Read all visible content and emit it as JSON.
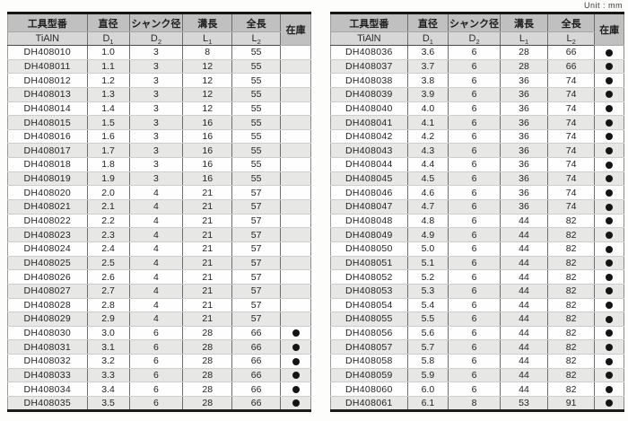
{
  "unit_label": "Unit : mm",
  "headers": {
    "model": "工具型番",
    "diameter": "直径",
    "shank": "シャンク径",
    "flute": "溝長",
    "overall": "全長",
    "stock": "在庫",
    "coating": "TiAlN",
    "d1": {
      "base": "D",
      "sub": "1"
    },
    "d2": {
      "base": "D",
      "sub": "2"
    },
    "l1": {
      "base": "L",
      "sub": "1"
    },
    "l2": {
      "base": "L",
      "sub": "2"
    }
  },
  "left_rows": [
    [
      "DH408010",
      "1.0",
      "3",
      "8",
      "55",
      0
    ],
    [
      "DH408011",
      "1.1",
      "3",
      "12",
      "55",
      0
    ],
    [
      "DH408012",
      "1.2",
      "3",
      "12",
      "55",
      0
    ],
    [
      "DH408013",
      "1.3",
      "3",
      "12",
      "55",
      0
    ],
    [
      "DH408014",
      "1.4",
      "3",
      "12",
      "55",
      0
    ],
    [
      "DH408015",
      "1.5",
      "3",
      "16",
      "55",
      0
    ],
    [
      "DH408016",
      "1.6",
      "3",
      "16",
      "55",
      0
    ],
    [
      "DH408017",
      "1.7",
      "3",
      "16",
      "55",
      0
    ],
    [
      "DH408018",
      "1.8",
      "3",
      "16",
      "55",
      0
    ],
    [
      "DH408019",
      "1.9",
      "3",
      "16",
      "55",
      0
    ],
    [
      "DH408020",
      "2.0",
      "4",
      "21",
      "57",
      0
    ],
    [
      "DH408021",
      "2.1",
      "4",
      "21",
      "57",
      0
    ],
    [
      "DH408022",
      "2.2",
      "4",
      "21",
      "57",
      0
    ],
    [
      "DH408023",
      "2.3",
      "4",
      "21",
      "57",
      0
    ],
    [
      "DH408024",
      "2.4",
      "4",
      "21",
      "57",
      0
    ],
    [
      "DH408025",
      "2.5",
      "4",
      "21",
      "57",
      0
    ],
    [
      "DH408026",
      "2.6",
      "4",
      "21",
      "57",
      0
    ],
    [
      "DH408027",
      "2.7",
      "4",
      "21",
      "57",
      0
    ],
    [
      "DH408028",
      "2.8",
      "4",
      "21",
      "57",
      0
    ],
    [
      "DH408029",
      "2.9",
      "4",
      "21",
      "57",
      0
    ],
    [
      "DH408030",
      "3.0",
      "6",
      "28",
      "66",
      1
    ],
    [
      "DH408031",
      "3.1",
      "6",
      "28",
      "66",
      1
    ],
    [
      "DH408032",
      "3.2",
      "6",
      "28",
      "66",
      1
    ],
    [
      "DH408033",
      "3.3",
      "6",
      "28",
      "66",
      1
    ],
    [
      "DH408034",
      "3.4",
      "6",
      "28",
      "66",
      1
    ],
    [
      "DH408035",
      "3.5",
      "6",
      "28",
      "66",
      1
    ]
  ],
  "right_rows": [
    [
      "DH408036",
      "3.6",
      "6",
      "28",
      "66",
      1
    ],
    [
      "DH408037",
      "3.7",
      "6",
      "28",
      "66",
      1
    ],
    [
      "DH408038",
      "3.8",
      "6",
      "36",
      "74",
      1
    ],
    [
      "DH408039",
      "3.9",
      "6",
      "36",
      "74",
      1
    ],
    [
      "DH408040",
      "4.0",
      "6",
      "36",
      "74",
      1
    ],
    [
      "DH408041",
      "4.1",
      "6",
      "36",
      "74",
      1
    ],
    [
      "DH408042",
      "4.2",
      "6",
      "36",
      "74",
      1
    ],
    [
      "DH408043",
      "4.3",
      "6",
      "36",
      "74",
      1
    ],
    [
      "DH408044",
      "4.4",
      "6",
      "36",
      "74",
      1
    ],
    [
      "DH408045",
      "4.5",
      "6",
      "36",
      "74",
      1
    ],
    [
      "DH408046",
      "4.6",
      "6",
      "36",
      "74",
      1
    ],
    [
      "DH408047",
      "4.7",
      "6",
      "36",
      "74",
      1
    ],
    [
      "DH408048",
      "4.8",
      "6",
      "44",
      "82",
      1
    ],
    [
      "DH408049",
      "4.9",
      "6",
      "44",
      "82",
      1
    ],
    [
      "DH408050",
      "5.0",
      "6",
      "44",
      "82",
      1
    ],
    [
      "DH408051",
      "5.1",
      "6",
      "44",
      "82",
      1
    ],
    [
      "DH408052",
      "5.2",
      "6",
      "44",
      "82",
      1
    ],
    [
      "DH408053",
      "5.3",
      "6",
      "44",
      "82",
      1
    ],
    [
      "DH408054",
      "5.4",
      "6",
      "44",
      "82",
      1
    ],
    [
      "DH408055",
      "5.5",
      "6",
      "44",
      "82",
      1
    ],
    [
      "DH408056",
      "5.6",
      "6",
      "44",
      "82",
      1
    ],
    [
      "DH408057",
      "5.7",
      "6",
      "44",
      "82",
      1
    ],
    [
      "DH408058",
      "5.8",
      "6",
      "44",
      "82",
      1
    ],
    [
      "DH408059",
      "5.9",
      "6",
      "44",
      "82",
      1
    ],
    [
      "DH408060",
      "6.0",
      "6",
      "44",
      "82",
      1
    ],
    [
      "DH408061",
      "6.1",
      "8",
      "53",
      "91",
      1
    ]
  ]
}
